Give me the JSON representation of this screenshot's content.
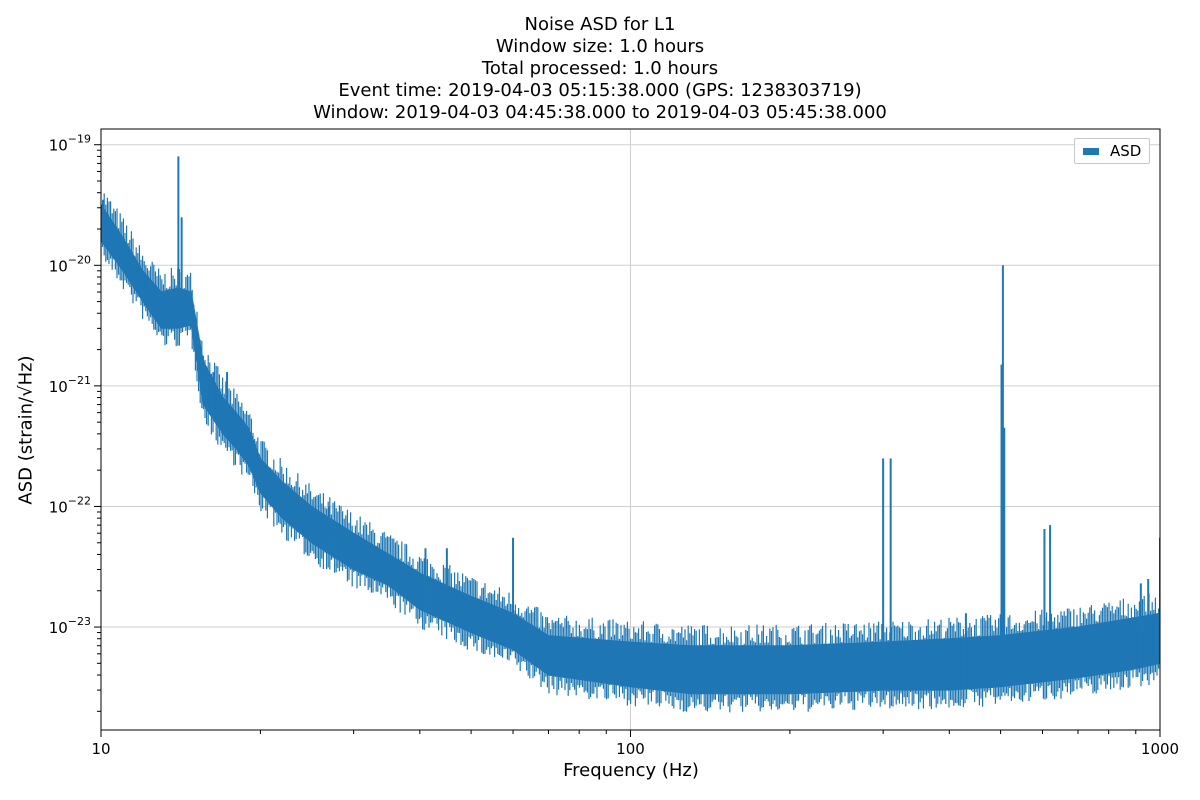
{
  "chart_data": {
    "type": "line",
    "title_lines": [
      "Noise ASD for L1",
      "Window size: 1.0 hours",
      "Total processed: 1.0 hours",
      "Event time: 2019-04-03 05:15:38.000 (GPS: 1238303719)",
      "Window: 2019-04-03 04:45:38.000 to 2019-04-03 05:45:38.000"
    ],
    "xlabel": "Frequency (Hz)",
    "ylabel": "ASD (strain/√Hz)",
    "x_scale": "log",
    "y_scale": "log",
    "xlim": [
      10,
      1000
    ],
    "ylim": [
      1.4e-24,
      1.35e-19
    ],
    "x_ticks": [
      {
        "value": 10,
        "label": "10"
      },
      {
        "value": 100,
        "label": "100"
      },
      {
        "value": 1000,
        "label": "1000"
      }
    ],
    "y_ticks": [
      {
        "value": 1e-19,
        "label": "10",
        "exp": "−19"
      },
      {
        "value": 1e-20,
        "label": "10",
        "exp": "−20"
      },
      {
        "value": 1e-21,
        "label": "10",
        "exp": "−21"
      },
      {
        "value": 1e-22,
        "label": "10",
        "exp": "−22"
      },
      {
        "value": 1e-23,
        "label": "10",
        "exp": "−23"
      }
    ],
    "grid": true,
    "legend": {
      "position": "top-right",
      "entries": [
        "ASD"
      ]
    },
    "series": [
      {
        "name": "ASD",
        "color": "#1f77b4",
        "band": [
          {
            "x": 10,
            "lo": 1.6e-20,
            "hi": 3.2e-20
          },
          {
            "x": 11,
            "lo": 9e-21,
            "hi": 1.7e-20
          },
          {
            "x": 12,
            "lo": 5e-21,
            "hi": 9e-21
          },
          {
            "x": 13,
            "lo": 3e-21,
            "hi": 6e-21
          },
          {
            "x": 14,
            "lo": 3e-21,
            "hi": 6.5e-21
          },
          {
            "x": 14.8,
            "lo": 3.2e-21,
            "hi": 6e-21
          },
          {
            "x": 15.6,
            "lo": 7e-22,
            "hi": 1.6e-21
          },
          {
            "x": 17,
            "lo": 4e-22,
            "hi": 8e-22
          },
          {
            "x": 18,
            "lo": 3e-22,
            "hi": 6e-22
          },
          {
            "x": 19,
            "lo": 2.2e-22,
            "hi": 4.5e-22
          },
          {
            "x": 20,
            "lo": 1.3e-22,
            "hi": 2.5e-22
          },
          {
            "x": 22,
            "lo": 8e-23,
            "hi": 1.6e-22
          },
          {
            "x": 25,
            "lo": 5e-23,
            "hi": 1e-22
          },
          {
            "x": 30,
            "lo": 3e-23,
            "hi": 6e-23
          },
          {
            "x": 35,
            "lo": 2.2e-23,
            "hi": 4e-23
          },
          {
            "x": 40,
            "lo": 1.4e-23,
            "hi": 2.8e-23
          },
          {
            "x": 50,
            "lo": 9e-24,
            "hi": 1.8e-23
          },
          {
            "x": 60,
            "lo": 6.5e-24,
            "hi": 1.3e-23
          },
          {
            "x": 70,
            "lo": 4e-24,
            "hi": 8.5e-24
          },
          {
            "x": 100,
            "lo": 3.2e-24,
            "hi": 7.5e-24
          },
          {
            "x": 130,
            "lo": 2.8e-24,
            "hi": 7e-24
          },
          {
            "x": 200,
            "lo": 2.8e-24,
            "hi": 7e-24
          },
          {
            "x": 300,
            "lo": 3e-24,
            "hi": 7.5e-24
          },
          {
            "x": 400,
            "lo": 3e-24,
            "hi": 8e-24
          },
          {
            "x": 500,
            "lo": 3.2e-24,
            "hi": 8.5e-24
          },
          {
            "x": 700,
            "lo": 3.8e-24,
            "hi": 1e-23
          },
          {
            "x": 900,
            "lo": 4.5e-24,
            "hi": 1.2e-23
          },
          {
            "x": 1000,
            "lo": 5e-24,
            "hi": 1.3e-23
          }
        ],
        "peaks": [
          {
            "x": 10.1,
            "y": 3.5e-20
          },
          {
            "x": 14.0,
            "y": 8e-20
          },
          {
            "x": 14.2,
            "y": 2.5e-20
          },
          {
            "x": 15.0,
            "y": 3e-21
          },
          {
            "x": 15.5,
            "y": 1.7e-21
          },
          {
            "x": 16.3,
            "y": 1.3e-21
          },
          {
            "x": 17.3,
            "y": 1.3e-21
          },
          {
            "x": 27.0,
            "y": 1e-22
          },
          {
            "x": 41.0,
            "y": 4.5e-23
          },
          {
            "x": 45.0,
            "y": 4.5e-23
          },
          {
            "x": 60.0,
            "y": 5.5e-23
          },
          {
            "x": 300.0,
            "y": 2.5e-22
          },
          {
            "x": 310.0,
            "y": 2.5e-22
          },
          {
            "x": 430.0,
            "y": 1.3e-23
          },
          {
            "x": 502.0,
            "y": 1.5e-21
          },
          {
            "x": 505.0,
            "y": 1e-20
          },
          {
            "x": 508.0,
            "y": 4.5e-22
          },
          {
            "x": 605.0,
            "y": 6.5e-23
          },
          {
            "x": 620.0,
            "y": 7e-23
          },
          {
            "x": 920.0,
            "y": 2.3e-23
          },
          {
            "x": 950.0,
            "y": 2.5e-23
          },
          {
            "x": 1000.0,
            "y": 5.5e-23
          }
        ]
      }
    ]
  }
}
